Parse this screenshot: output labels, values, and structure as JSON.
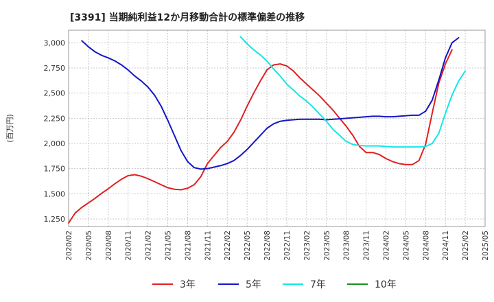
{
  "chart_data": {
    "type": "line",
    "title": "[3391]  当期純利益12か月移動合計の標準偏差の推移",
    "ylabel": "(百万円)",
    "xlabel": "",
    "ylim": [
      1175,
      3125
    ],
    "yticks": [
      1250,
      1500,
      1750,
      2000,
      2250,
      2500,
      2750,
      3000
    ],
    "ytick_labels": [
      "1,250",
      "1,500",
      "1,750",
      "2,000",
      "2,250",
      "2,500",
      "2,750",
      "3,000"
    ],
    "xticks": [
      "2020/02",
      "2020/05",
      "2020/08",
      "2020/11",
      "2021/02",
      "2021/05",
      "2021/08",
      "2021/11",
      "2022/02",
      "2022/05",
      "2022/08",
      "2022/11",
      "2023/02",
      "2023/05",
      "2023/08",
      "2023/11",
      "2024/02",
      "2024/05",
      "2024/08",
      "2024/11",
      "2025/02",
      "2025/05"
    ],
    "x_start": "2020/02",
    "grid": true,
    "legend_position": "bottom",
    "series": [
      {
        "name": "3年",
        "color": "#e02020",
        "start": "2020/02",
        "values": [
          1210,
          1310,
          1365,
          1410,
          1455,
          1505,
          1550,
          1600,
          1645,
          1680,
          1690,
          1675,
          1650,
          1620,
          1590,
          1560,
          1545,
          1540,
          1555,
          1590,
          1670,
          1800,
          1880,
          1960,
          2020,
          2110,
          2230,
          2370,
          2500,
          2620,
          2730,
          2780,
          2790,
          2770,
          2720,
          2650,
          2590,
          2530,
          2470,
          2400,
          2330,
          2250,
          2170,
          2080,
          1970,
          1910,
          1910,
          1890,
          1850,
          1820,
          1800,
          1790,
          1790,
          1830,
          1990,
          2300,
          2600,
          2790,
          2930
        ]
      },
      {
        "name": "5年",
        "color": "#1414c8",
        "start": "2020/04",
        "values": [
          3020,
          2960,
          2910,
          2875,
          2850,
          2820,
          2780,
          2730,
          2670,
          2620,
          2560,
          2480,
          2370,
          2230,
          2080,
          1930,
          1820,
          1760,
          1745,
          1750,
          1765,
          1780,
          1800,
          1830,
          1880,
          1940,
          2010,
          2080,
          2150,
          2195,
          2220,
          2230,
          2235,
          2240,
          2240,
          2240,
          2240,
          2235,
          2240,
          2245,
          2250,
          2255,
          2260,
          2265,
          2270,
          2270,
          2265,
          2265,
          2270,
          2275,
          2280,
          2280,
          2320,
          2430,
          2630,
          2850,
          3000,
          3050
        ]
      },
      {
        "name": "7年",
        "color": "#14e6e6",
        "start": "2022/04",
        "values": [
          3060,
          2990,
          2930,
          2880,
          2820,
          2740,
          2670,
          2590,
          2530,
          2470,
          2420,
          2360,
          2290,
          2220,
          2140,
          2080,
          2020,
          1990,
          1980,
          1975,
          1975,
          1975,
          1970,
          1965,
          1965,
          1965,
          1965,
          1965,
          1970,
          2000,
          2100,
          2300,
          2480,
          2620,
          2720
        ]
      },
      {
        "name": "10年",
        "color": "#1a8c1a",
        "start": "2020/02",
        "values": []
      }
    ]
  }
}
